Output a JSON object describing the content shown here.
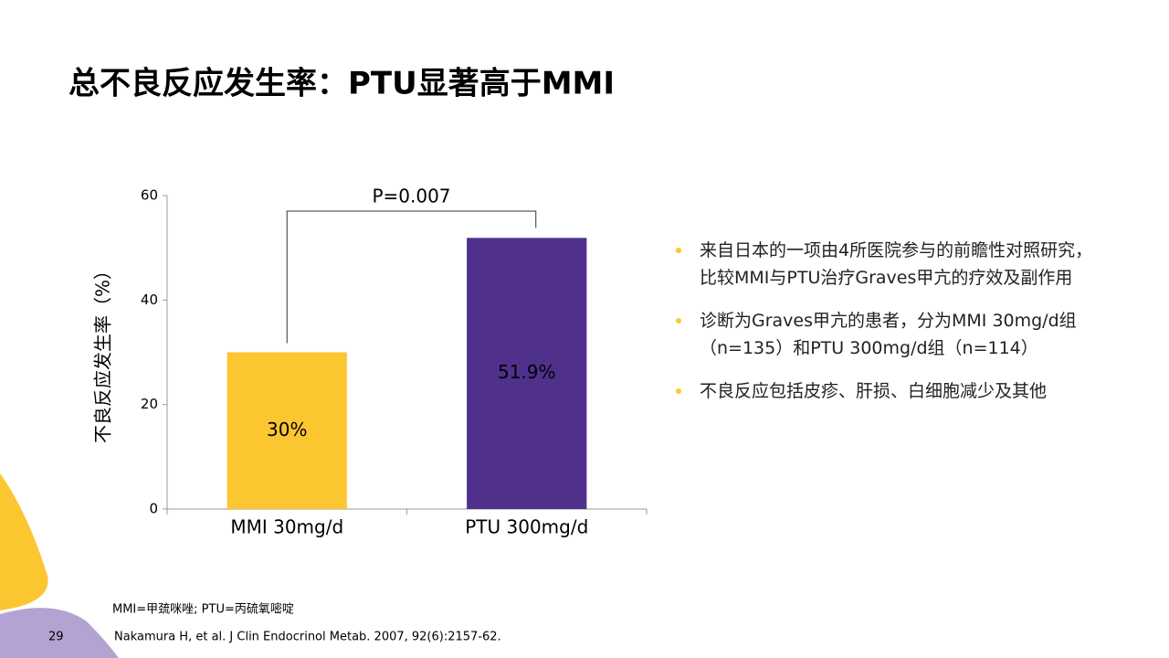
{
  "title": "总不良反应发生率：PTU显著高于MMI",
  "chart_data": {
    "type": "bar",
    "ylabel": "不良反应发生率（%）",
    "annotation": "P=0.007",
    "categories": [
      "MMI 30mg/d",
      "PTU 300mg/d"
    ],
    "values": [
      30,
      51.9
    ],
    "value_labels": [
      "30%",
      "51.9%"
    ],
    "colors": [
      "#fcc630",
      "#4f318c"
    ],
    "value_label_colors": [
      "#000000",
      "#ffffff"
    ],
    "ylim": [
      0,
      60
    ],
    "yticks": [
      0,
      20,
      40,
      60
    ]
  },
  "bullets": [
    "来自日本的一项由4所医院参与的前瞻性对照研究，比较MMI与PTU治疗Graves甲亢的疗效及副作用",
    "诊断为Graves甲亢的患者，分为MMI 30mg/d组（n=135）和PTU 300mg/d组（n=114）",
    "不良反应包括皮疹、肝损、白细胞减少及其他"
  ],
  "footnote": "MMI=甲巯咪唑; PTU=丙硫氧嘧啶",
  "reference": "Nakamura H, et al. J Clin Endocrinol Metab. 2007, 92(6):2157-62.",
  "page_number": "29"
}
